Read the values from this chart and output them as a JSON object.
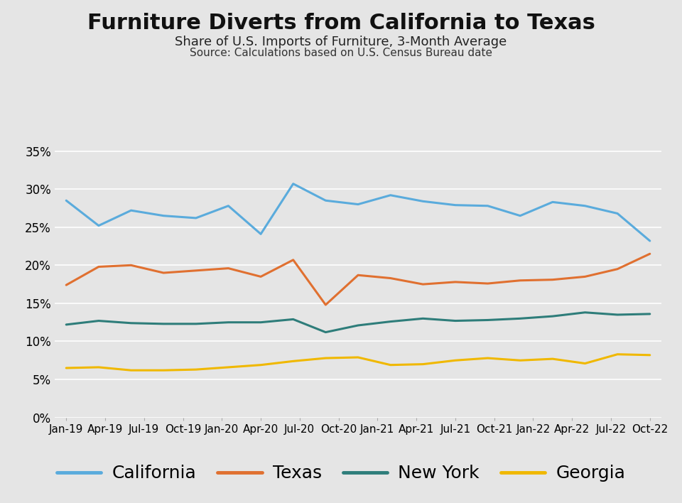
{
  "title": "Furniture Diverts from California to Texas",
  "subtitle": "Share of U.S. Imports of Furniture, 3-Month Average",
  "source": "Source: Calculations based on U.S. Census Bureau date",
  "title_fontsize": 22,
  "subtitle_fontsize": 13,
  "source_fontsize": 11,
  "background_color": "#e5e5e5",
  "grid_color": "#ffffff",
  "x_labels": [
    "Jan-19",
    "Apr-19",
    "Jul-19",
    "Oct-19",
    "Jan-20",
    "Apr-20",
    "Jul-20",
    "Oct-20",
    "Jan-21",
    "Apr-21",
    "Jul-21",
    "Oct-21",
    "Jan-22",
    "Apr-22",
    "Jul-22",
    "Oct-22"
  ],
  "california": [
    0.285,
    0.252,
    0.272,
    0.265,
    0.262,
    0.278,
    0.241,
    0.307,
    0.285,
    0.28,
    0.292,
    0.284,
    0.279,
    0.278,
    0.265,
    0.283,
    0.278,
    0.268,
    0.232
  ],
  "texas": [
    0.174,
    0.198,
    0.2,
    0.19,
    0.193,
    0.196,
    0.185,
    0.207,
    0.148,
    0.187,
    0.183,
    0.175,
    0.178,
    0.176,
    0.18,
    0.181,
    0.185,
    0.195,
    0.215
  ],
  "newyork": [
    0.122,
    0.127,
    0.124,
    0.123,
    0.123,
    0.125,
    0.125,
    0.129,
    0.112,
    0.121,
    0.126,
    0.13,
    0.127,
    0.128,
    0.13,
    0.133,
    0.138,
    0.135,
    0.136
  ],
  "georgia": [
    0.065,
    0.066,
    0.062,
    0.062,
    0.063,
    0.066,
    0.069,
    0.074,
    0.078,
    0.079,
    0.069,
    0.07,
    0.075,
    0.078,
    0.075,
    0.077,
    0.071,
    0.083,
    0.082
  ],
  "ca_color": "#5aabdc",
  "tx_color": "#e07030",
  "ny_color": "#2e7d7a",
  "ga_color": "#f0b800",
  "line_width": 2.2,
  "ylim": [
    0.0,
    0.37
  ],
  "yticks": [
    0.0,
    0.05,
    0.1,
    0.15,
    0.2,
    0.25,
    0.3,
    0.35
  ],
  "legend_fontsize": 18,
  "legend_linewidth": 3.5
}
